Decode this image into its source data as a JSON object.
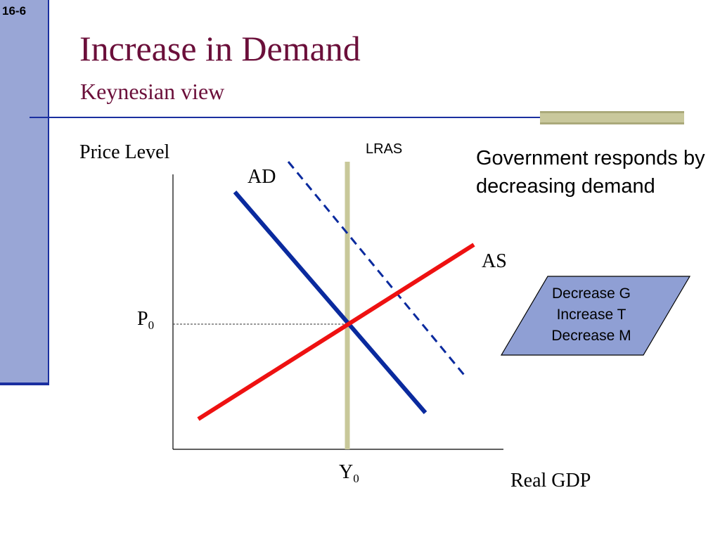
{
  "slide_number": "16-6",
  "title": "Increase in Demand",
  "subtitle": "Keynesian view",
  "diagram": {
    "y_axis_label": "Price Level",
    "x_axis_label": "Real GDP",
    "lras_label": "LRAS",
    "ad_label": "AD",
    "as_label": "AS",
    "price_label": "P",
    "price_subscript": "0",
    "output_label": "Y",
    "output_subscript": "0",
    "colors": {
      "ad": "#0a2a9e",
      "ad_shifted": "#0a2a9e",
      "as": "#ee1111",
      "lras": "#c8c89a",
      "axis": "#000000"
    }
  },
  "note": "Government responds by decreasing demand",
  "policy_box": {
    "fill": "#8f9fd4",
    "items": [
      "Decrease G",
      "Increase T",
      "Decrease M"
    ]
  }
}
